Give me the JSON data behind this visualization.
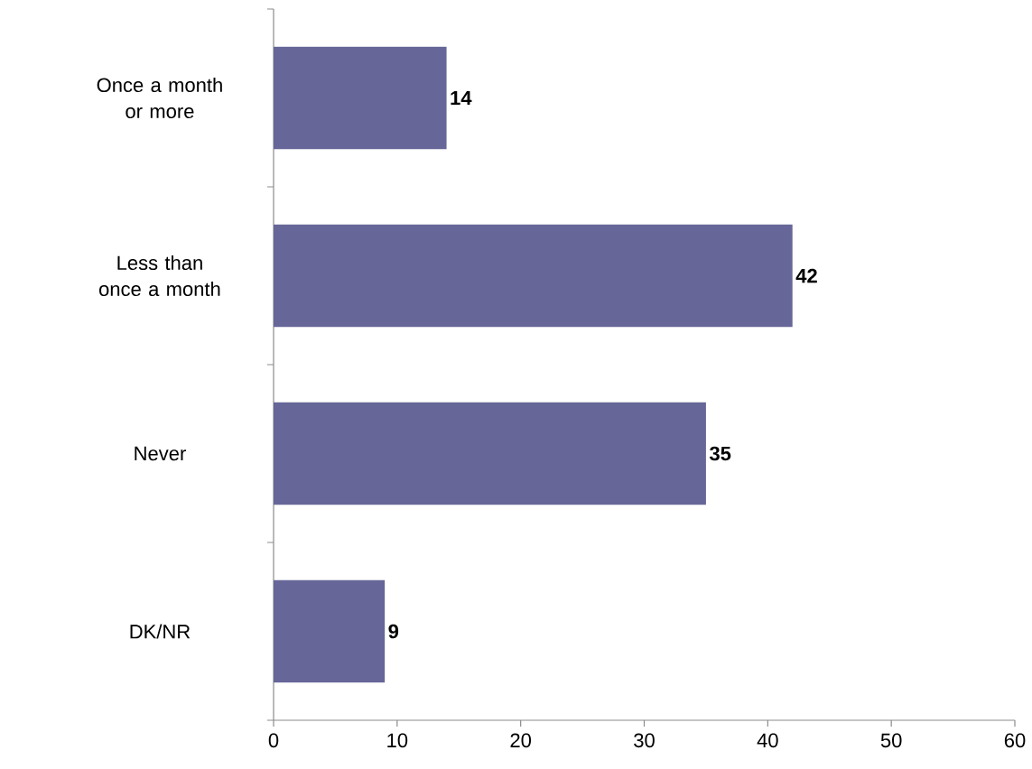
{
  "chart_data": {
    "type": "bar",
    "orientation": "horizontal",
    "categories": [
      "Once a month or more",
      "Less than once a month",
      "Never",
      "DK/NR"
    ],
    "values": [
      14,
      42,
      35,
      9
    ],
    "color": "#666699",
    "xlim": [
      0,
      60
    ],
    "xticks": [
      0,
      10,
      20,
      30,
      40,
      50,
      60
    ],
    "data_labels": true
  }
}
